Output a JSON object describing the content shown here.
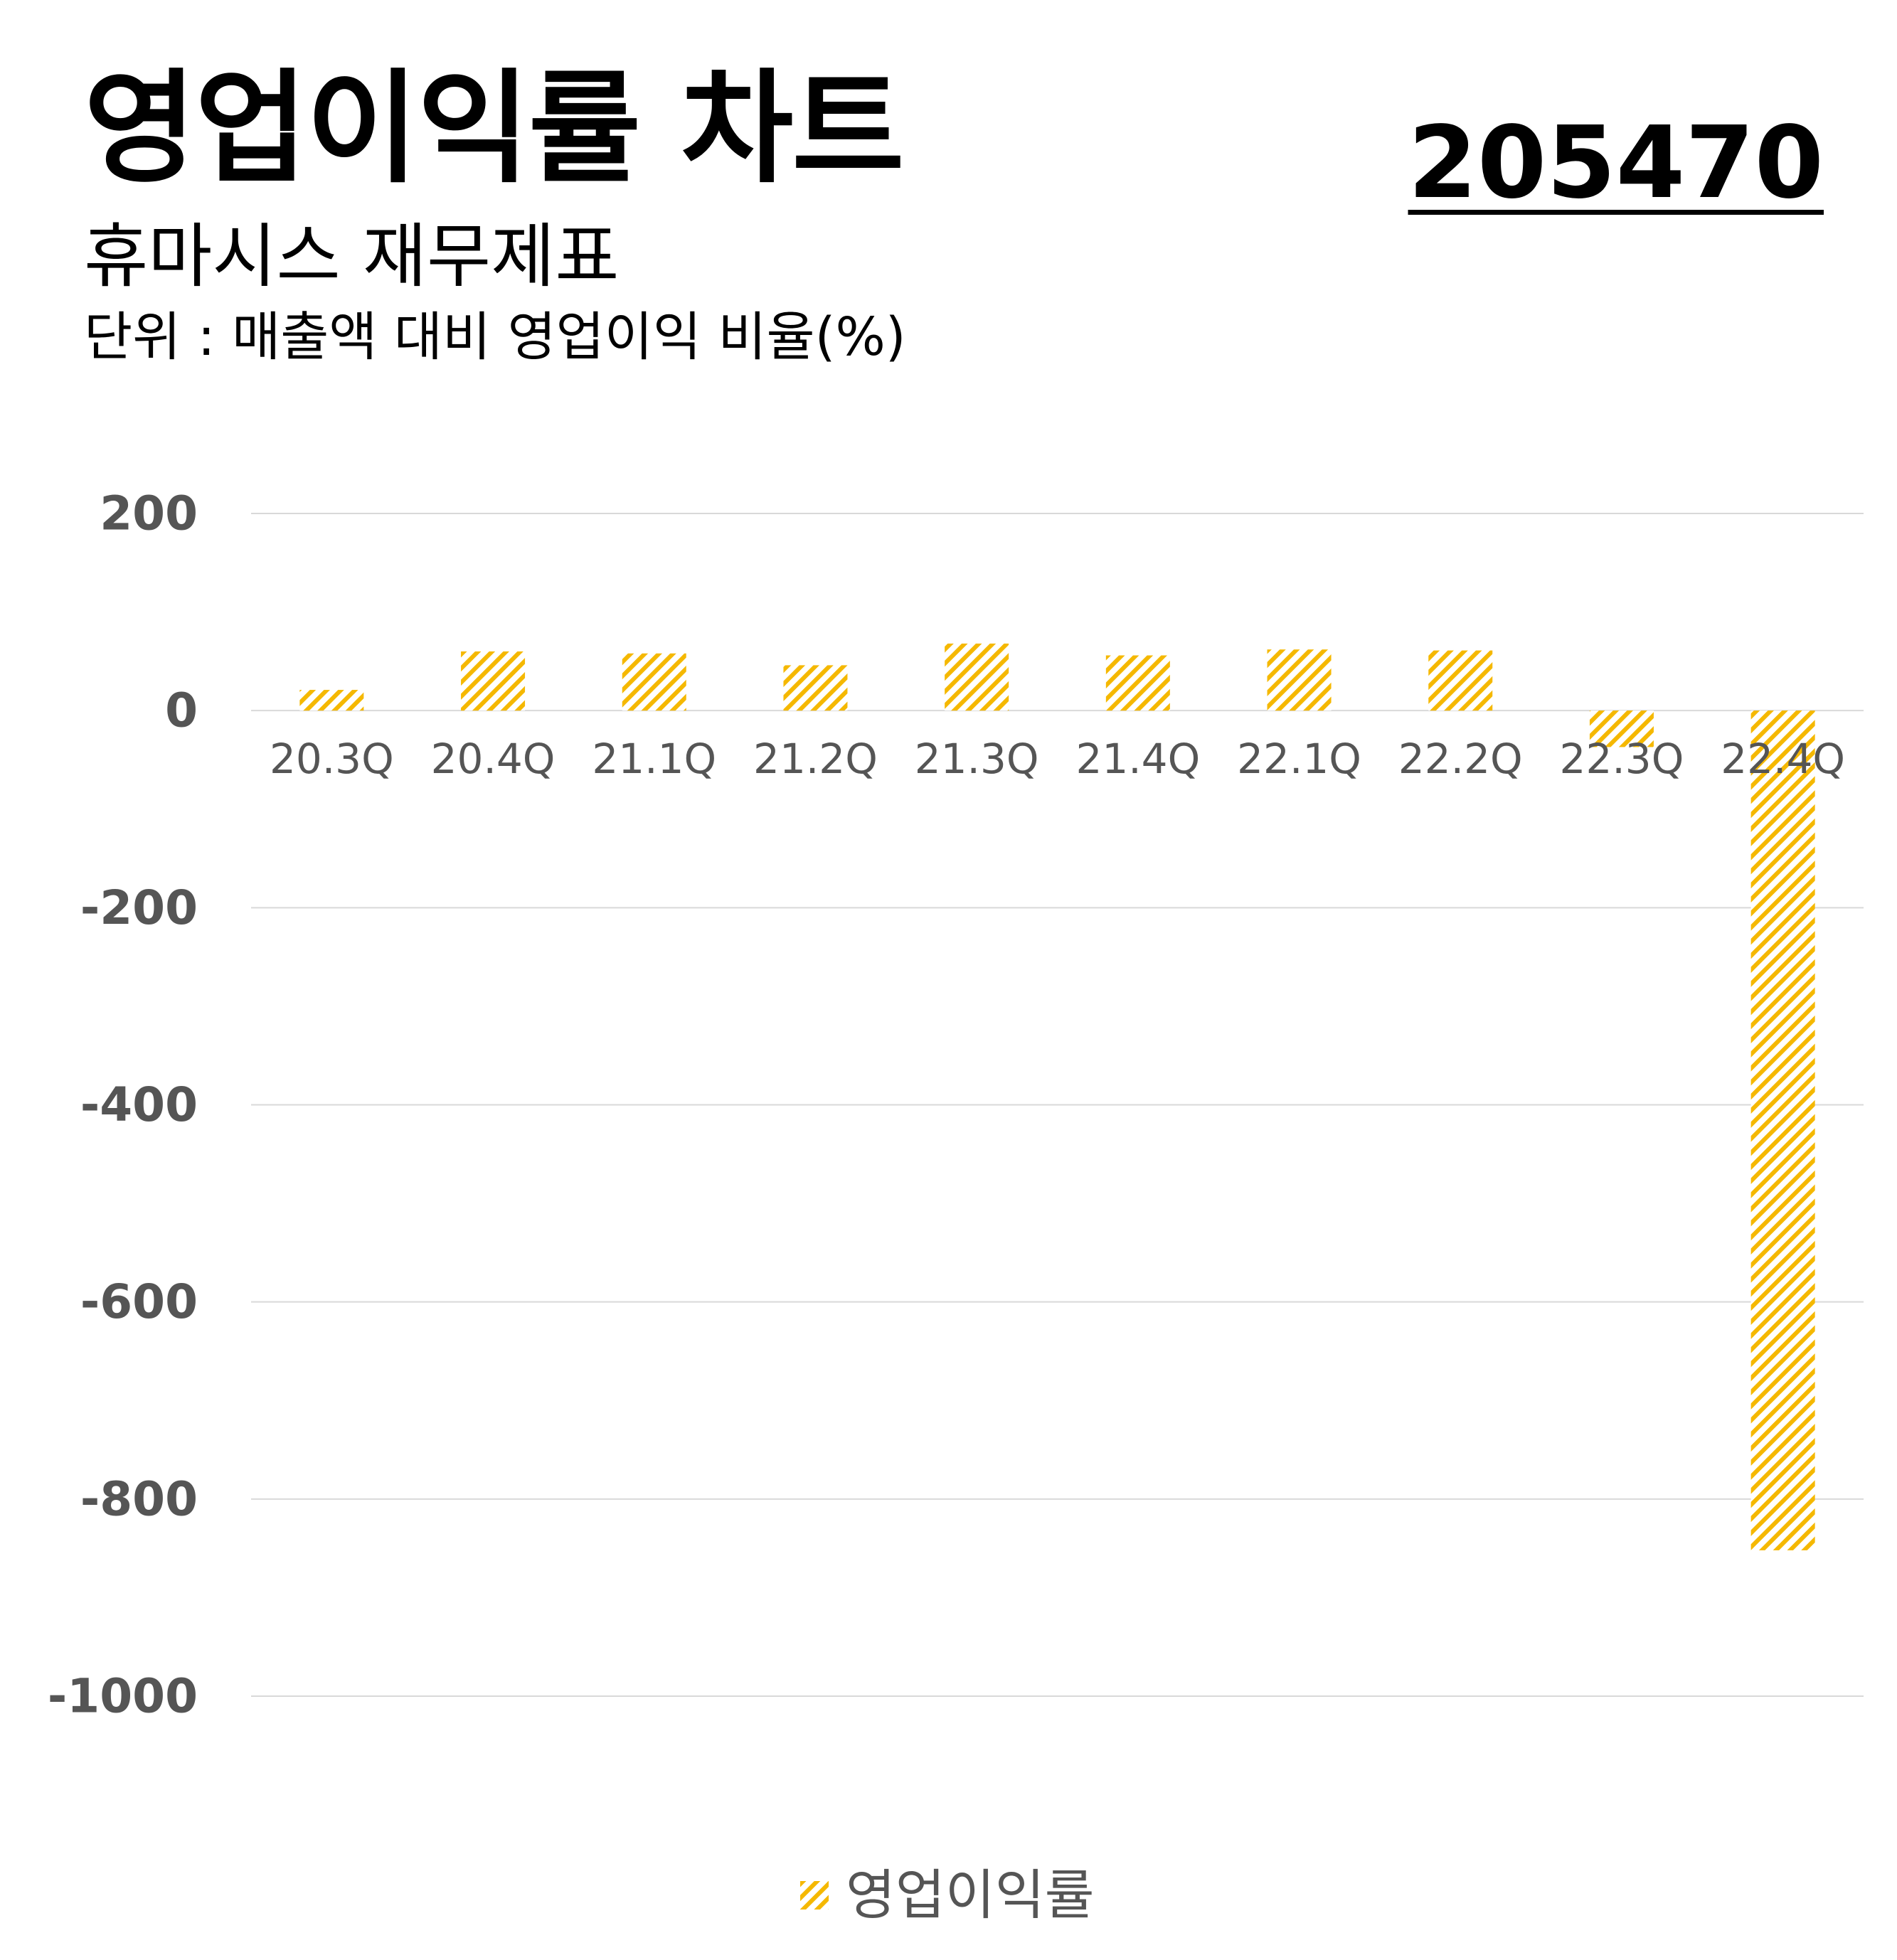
{
  "header": {
    "title": "영업이익률 차트",
    "code": "205470",
    "subtitle": "휴마시스 재무제표",
    "unit": "단위 : 매출액 대비 영업이익 비율(%)"
  },
  "colors": {
    "bar": "#F5B800",
    "grid": "#D9D9D9",
    "tick": "#555555"
  },
  "chart_data": {
    "type": "bar",
    "categories": [
      "20.3Q",
      "20.4Q",
      "21.1Q",
      "21.2Q",
      "21.3Q",
      "21.4Q",
      "22.1Q",
      "22.2Q",
      "22.3Q",
      "22.4Q"
    ],
    "series": [
      {
        "name": "영업이익률",
        "values": [
          21,
          60,
          58,
          46,
          68,
          56,
          62,
          61,
          -37,
          -852
        ]
      }
    ],
    "y_ticks": [
      "200",
      "0",
      "-200",
      "-400",
      "-600",
      "-800",
      "-1000"
    ],
    "ylim": [
      -1000,
      200
    ],
    "bar_pattern": "diagonal-hatch",
    "grid": true,
    "legend": "bottom-center"
  }
}
